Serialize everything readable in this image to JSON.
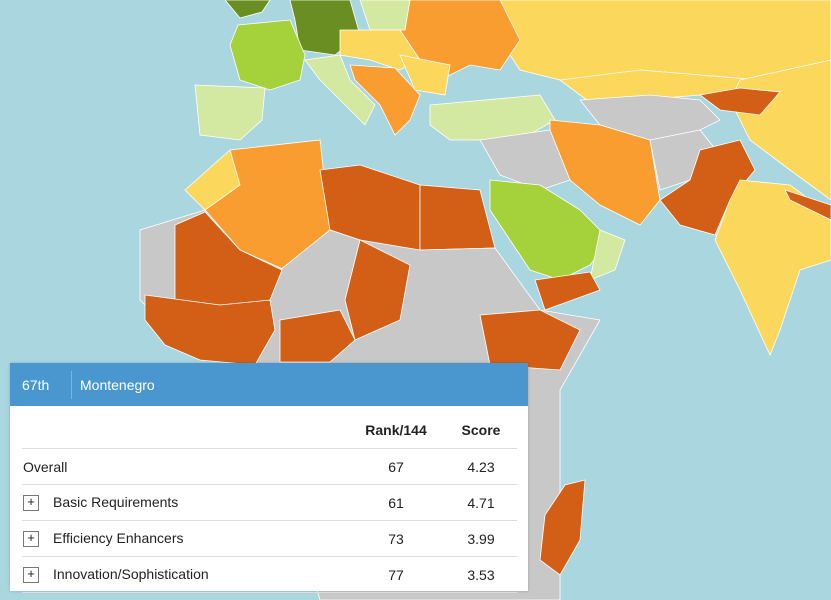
{
  "colors": {
    "sea": "#aad6e0",
    "dark_orange": "#d35f17",
    "orange": "#f99d31",
    "yellow": "#fbd75b",
    "light_green": "#d3e8a0",
    "green": "#a5d13a",
    "dark_green": "#6b8e23",
    "no_data": "#c8c8c8",
    "header": "#4a97cf"
  },
  "popup": {
    "rank": "67th",
    "country": "Montenegro",
    "columns": [
      "",
      "Rank/144",
      "Score"
    ],
    "rows": [
      {
        "label": "Overall",
        "rank": "67",
        "score": "4.23",
        "expandable": false
      },
      {
        "label": "Basic Requirements",
        "rank": "61",
        "score": "4.71",
        "expandable": true,
        "expand_icon": "+"
      },
      {
        "label": "Efficiency Enhancers",
        "rank": "73",
        "score": "3.99",
        "expandable": true,
        "expand_icon": "+"
      },
      {
        "label": "Innovation/Sophistication",
        "rank": "77",
        "score": "3.53",
        "expandable": true,
        "expand_icon": "+"
      }
    ]
  }
}
